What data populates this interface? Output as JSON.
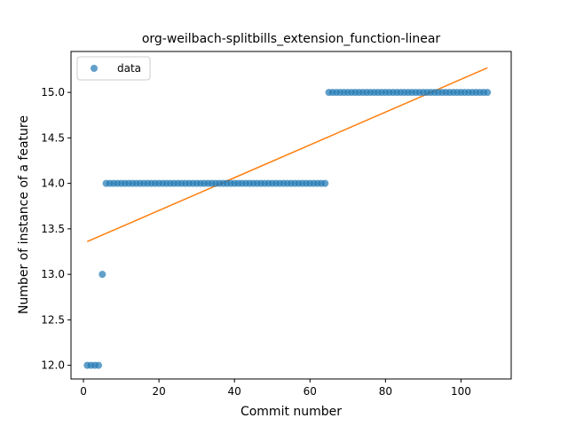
{
  "chart_data": {
    "type": "scatter",
    "title": "org-weilbach-splitbills_extension_function-linear",
    "xlabel": "Commit number",
    "ylabel": "Number of instance of a feature",
    "xlim": [
      -3.3,
      113.3
    ],
    "ylim": [
      11.85,
      15.45
    ],
    "xticks": [
      0,
      20,
      40,
      60,
      80,
      100
    ],
    "yticks": [
      12.0,
      12.5,
      13.0,
      13.5,
      14.0,
      14.5,
      15.0
    ],
    "xtick_labels": [
      "0",
      "20",
      "40",
      "60",
      "80",
      "100"
    ],
    "ytick_labels": [
      "12.0",
      "12.5",
      "13.0",
      "13.5",
      "14.0",
      "14.5",
      "15.0"
    ],
    "grid": false,
    "legend_position": "top-left",
    "legend_entries": [
      "data"
    ],
    "series": [
      {
        "name": "data",
        "type": "scatter",
        "color": "#1f77b4",
        "segments": [
          {
            "x_start": 1,
            "x_end": 4,
            "y": 12.0
          },
          {
            "x_start": 5,
            "x_end": 5,
            "y": 13.0
          },
          {
            "x_start": 6,
            "x_end": 64,
            "y": 14.0
          },
          {
            "x_start": 65,
            "x_end": 107,
            "y": 15.0
          }
        ]
      },
      {
        "type": "line",
        "color": "#ff7f0e",
        "x": [
          1,
          107
        ],
        "y": [
          13.36,
          15.27
        ]
      }
    ]
  }
}
